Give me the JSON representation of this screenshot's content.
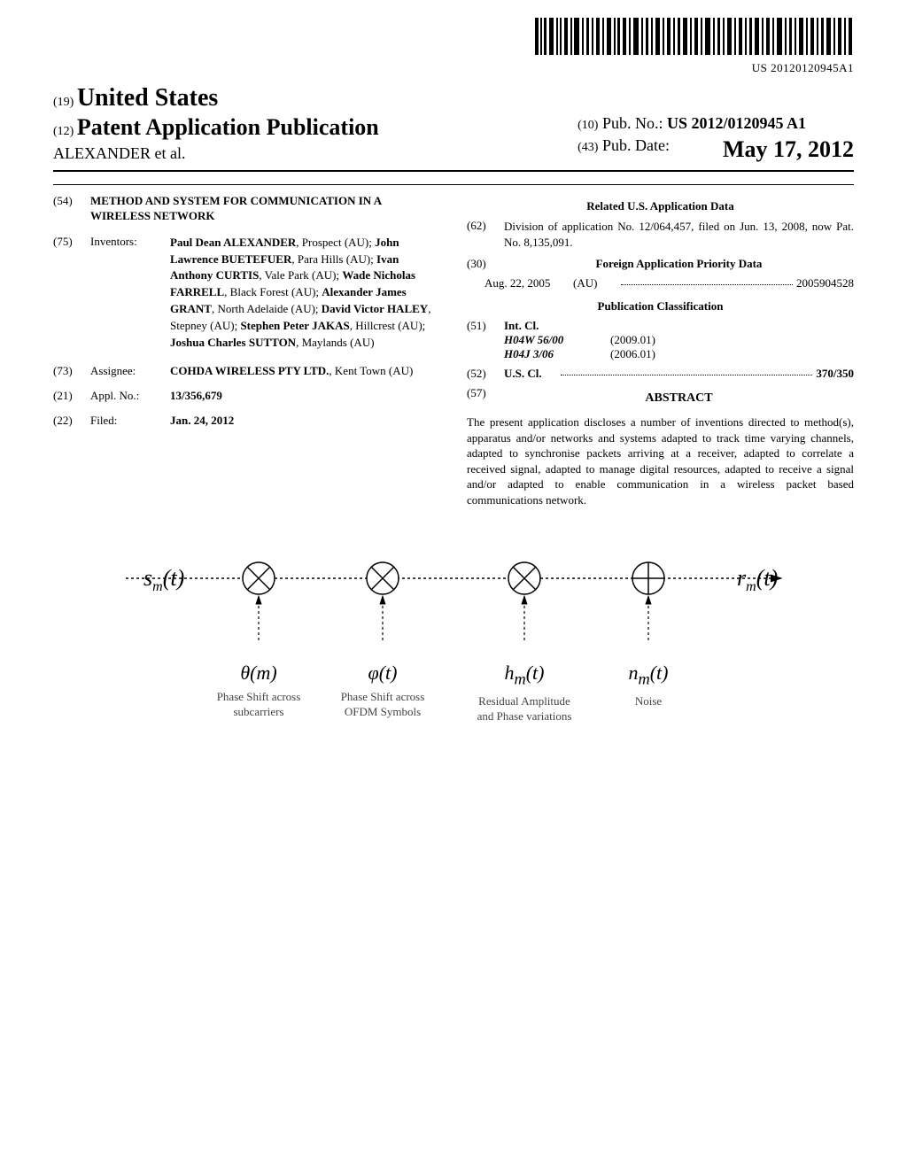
{
  "barcode_number": "US 20120120945A1",
  "header": {
    "country_prefix": "(19)",
    "country": "United States",
    "pub_type_prefix": "(12)",
    "pub_type": "Patent Application Publication",
    "authors": "ALEXANDER et al.",
    "pub_no_prefix": "(10)",
    "pub_no_label": "Pub. No.:",
    "pub_no_value": "US 2012/0120945 A1",
    "pub_date_prefix": "(43)",
    "pub_date_label": "Pub. Date:",
    "pub_date_value": "May 17, 2012"
  },
  "left": {
    "title": {
      "num": "(54)",
      "value": "METHOD AND SYSTEM FOR COMMUNICATION IN A WIRELESS NETWORK"
    },
    "inventors": {
      "num": "(75)",
      "label": "Inventors:",
      "parts": [
        {
          "name": "Paul Dean ALEXANDER",
          "loc": "Prospect (AU)",
          "bold": true
        },
        {
          "name": "John Lawrence BUETEFUER",
          "loc": "Para Hills (AU)",
          "bold": true
        },
        {
          "name": "Ivan Anthony CURTIS",
          "loc": "Vale Park (AU)",
          "bold": true
        },
        {
          "name": "Wade Nicholas FARRELL",
          "loc": "Black Forest (AU)",
          "bold": true
        },
        {
          "name": "Alexander James GRANT",
          "loc": "North Adelaide (AU)",
          "bold": true
        },
        {
          "name": "David Victor HALEY",
          "loc": "Stepney (AU)",
          "bold": true
        },
        {
          "name": "Stephen Peter JAKAS",
          "loc": "Hillcrest (AU)",
          "bold": true
        },
        {
          "name": "Joshua Charles SUTTON",
          "loc": "Maylands (AU)",
          "bold": true
        }
      ]
    },
    "assignee": {
      "num": "(73)",
      "label": "Assignee:",
      "name": "COHDA WIRELESS PTY LTD.",
      "loc": "Kent Town (AU)"
    },
    "appl_no": {
      "num": "(21)",
      "label": "Appl. No.:",
      "value": "13/356,679"
    },
    "filed": {
      "num": "(22)",
      "label": "Filed:",
      "value": "Jan. 24, 2012"
    }
  },
  "right": {
    "related_heading": "Related U.S. Application Data",
    "division": {
      "num": "(62)",
      "text": "Division of application No. 12/064,457, filed on Jun. 13, 2008, now Pat. No. 8,135,091."
    },
    "foreign_heading_num": "(30)",
    "foreign_heading": "Foreign Application Priority Data",
    "foreign_row": {
      "date": "Aug. 22, 2005",
      "country": "(AU)",
      "number": "2005904528"
    },
    "pub_class_heading": "Publication Classification",
    "int_cl": {
      "num": "(51)",
      "label": "Int. Cl.",
      "rows": [
        {
          "code": "H04W 56/00",
          "year": "(2009.01)"
        },
        {
          "code": "H04J 3/06",
          "year": "(2006.01)"
        }
      ]
    },
    "us_cl": {
      "num": "(52)",
      "label": "U.S. Cl.",
      "value": "370/350"
    },
    "abstract_num": "(57)",
    "abstract_heading": "ABSTRACT",
    "abstract_text": "The present application discloses a number of inventions directed to method(s), apparatus and/or networks and systems adapted to track time varying channels, adapted to synchronise packets arriving at a receiver, adapted to correlate a received signal, adapted to manage digital resources, adapted to receive a signal and/or adapted to enable communication in a wireless packet based communications network."
  },
  "figure": {
    "input_label": "s",
    "input_sub": "m",
    "input_arg": "(t)",
    "output_label": "r",
    "output_sub": "m",
    "output_arg": "(t)",
    "stages": [
      {
        "symbol": "θ(m)",
        "caption": "Phase Shift across subcarriers"
      },
      {
        "symbol": "φ(t)",
        "caption": "Phase Shift across OFDM Symbols"
      },
      {
        "symbol": "h",
        "sub": "m",
        "arg": "(t)",
        "caption": "Residual Amplitude and Phase variations"
      },
      {
        "symbol": "n",
        "sub": "m",
        "arg": "(t)",
        "caption": "Noise",
        "is_add": true
      }
    ]
  }
}
